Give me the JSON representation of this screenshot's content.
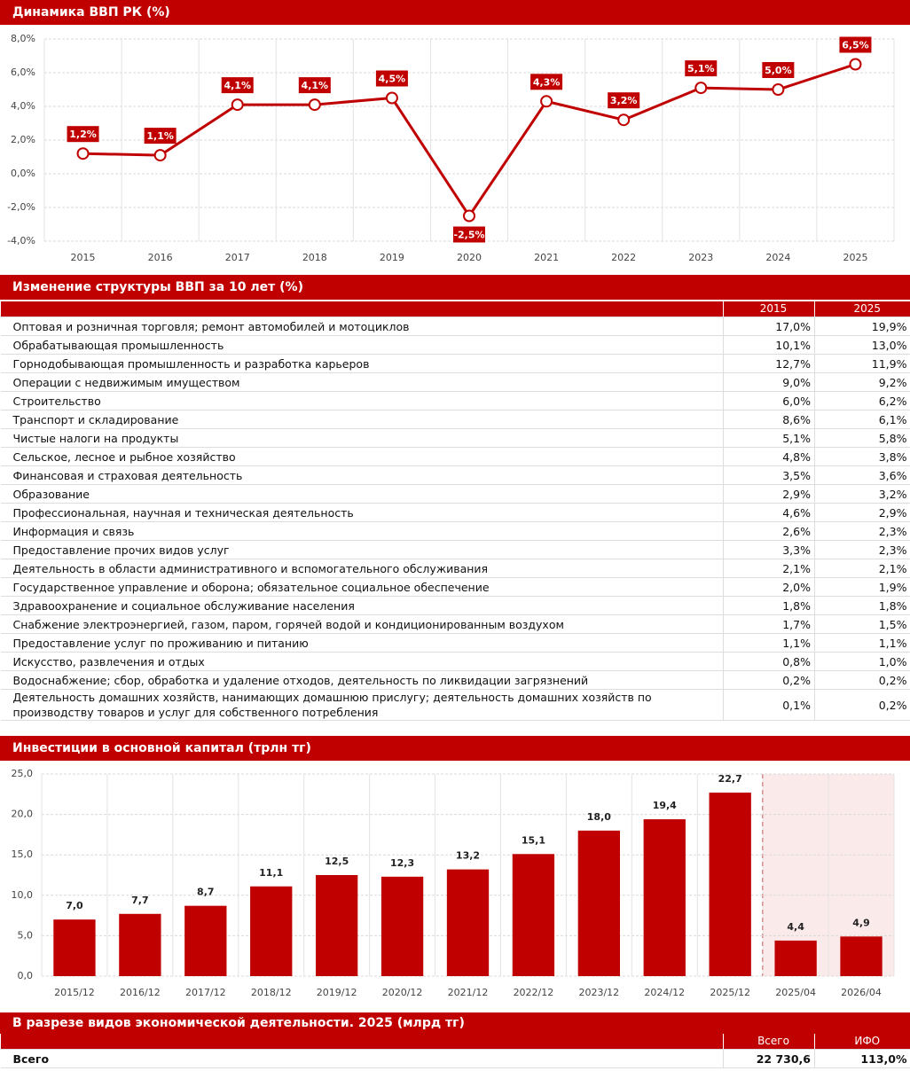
{
  "chart_data": [
    {
      "type": "line",
      "title": "Динамика ВВП РК (%)",
      "categories": [
        "2015",
        "2016",
        "2017",
        "2018",
        "2019",
        "2020",
        "2021",
        "2022",
        "2023",
        "2024",
        "2025"
      ],
      "values": [
        1.2,
        1.1,
        4.1,
        4.1,
        4.5,
        -2.5,
        4.3,
        3.2,
        5.1,
        5.0,
        6.5
      ],
      "value_labels": [
        "1,2%",
        "1,1%",
        "4,1%",
        "4,1%",
        "4,5%",
        "-2,5%",
        "4,3%",
        "3,2%",
        "5,1%",
        "5,0%",
        "6,5%"
      ],
      "color": "#c00000",
      "ylim": [
        -4,
        8
      ],
      "yticks": [
        {
          "value": -4,
          "label": "-4,0%"
        },
        {
          "value": -2,
          "label": "-2,0%"
        },
        {
          "value": 0,
          "label": "0,0%"
        },
        {
          "value": 2,
          "label": "2,0%"
        },
        {
          "value": 4,
          "label": "4,0%"
        },
        {
          "value": 6,
          "label": "6,0%"
        },
        {
          "value": 8,
          "label": "8,0%"
        }
      ],
      "grid": true
    },
    {
      "type": "bar",
      "title": "Инвестиции в основной капитал (трлн тг)",
      "categories": [
        "2015/12",
        "2016/12",
        "2017/12",
        "2018/12",
        "2019/12",
        "2020/12",
        "2021/12",
        "2022/12",
        "2023/12",
        "2024/12",
        "2025/12",
        "2025/04",
        "2026/04"
      ],
      "values": [
        7.0,
        7.7,
        8.7,
        11.1,
        12.5,
        12.3,
        13.2,
        15.1,
        18.0,
        19.4,
        22.7,
        4.4,
        4.9
      ],
      "value_labels": [
        "7,0",
        "7,7",
        "8,7",
        "11,1",
        "12,5",
        "12,3",
        "13,2",
        "15,1",
        "18,0",
        "19,4",
        "22,7",
        "4,4",
        "4,9"
      ],
      "color": "#c00000",
      "ylim": [
        0,
        25
      ],
      "yticks": [
        {
          "value": 0,
          "label": "0,0"
        },
        {
          "value": 5,
          "label": "5,0"
        },
        {
          "value": 10,
          "label": "10,0"
        },
        {
          "value": 15,
          "label": "15,0"
        },
        {
          "value": 20,
          "label": "20,0"
        },
        {
          "value": 25,
          "label": "25,0"
        }
      ],
      "grid": true
    }
  ],
  "tables": [
    {
      "title": "Изменение структуры ВВП за 10 лет (%)",
      "columns": [
        "2015",
        "2025"
      ],
      "rows": [
        [
          "Оптовая и розничная торговля; ремонт автомобилей и мотоциклов",
          "17,0%",
          "19,9%"
        ],
        [
          "Обрабатывающая промышленность",
          "10,1%",
          "13,0%"
        ],
        [
          "Горнодобывающая промышленность и разработка карьеров",
          "12,7%",
          "11,9%"
        ],
        [
          "Операции с недвижимым имуществом",
          "9,0%",
          "9,2%"
        ],
        [
          "Строительство",
          "6,0%",
          "6,2%"
        ],
        [
          "Транспорт и складирование",
          "8,6%",
          "6,1%"
        ],
        [
          "Чистые налоги на продукты",
          "5,1%",
          "5,8%"
        ],
        [
          "Сельское, лесное и рыбное хозяйство",
          "4,8%",
          "3,8%"
        ],
        [
          "Финансовая и страховая деятельность",
          "3,5%",
          "3,6%"
        ],
        [
          "Образование",
          "2,9%",
          "3,2%"
        ],
        [
          "Профессиональная, научная и техническая деятельность",
          "4,6%",
          "2,9%"
        ],
        [
          "Информация и связь",
          "2,6%",
          "2,3%"
        ],
        [
          "Предоставление прочих видов услуг",
          "3,3%",
          "2,3%"
        ],
        [
          "Деятельность в области административного и вспомогательного обслуживания",
          "2,1%",
          "2,1%"
        ],
        [
          "Государственное управление и оборона; обязательное социальное обеспечение",
          "2,0%",
          "1,9%"
        ],
        [
          "Здравоохранение и социальное обслуживание населения",
          "1,8%",
          "1,8%"
        ],
        [
          "Снабжение электроэнергией, газом, паром, горячей водой и кондиционированным воздухом",
          "1,7%",
          "1,5%"
        ],
        [
          "Предоставление услуг по проживанию и питанию",
          "1,1%",
          "1,1%"
        ],
        [
          "Искусство, развлечения и отдых",
          "0,8%",
          "1,0%"
        ],
        [
          "Водоснабжение; сбор, обработка и удаление отходов, деятельность по ликвидации загрязнений",
          "0,2%",
          "0,2%"
        ],
        [
          "Деятельность домашних хозяйств, нанимающих домашнюю прислугу; деятельность домашних хозяйств по производству товаров и услуг для собственного потребления",
          "0,1%",
          "0,2%"
        ]
      ]
    },
    {
      "title": "В разрезе видов экономической деятельности. 2025 (млрд тг)",
      "columns": [
        "Всего",
        "ИФО"
      ],
      "rows": [
        [
          "Всего",
          "22 730,6",
          "113,0%"
        ]
      ]
    }
  ]
}
